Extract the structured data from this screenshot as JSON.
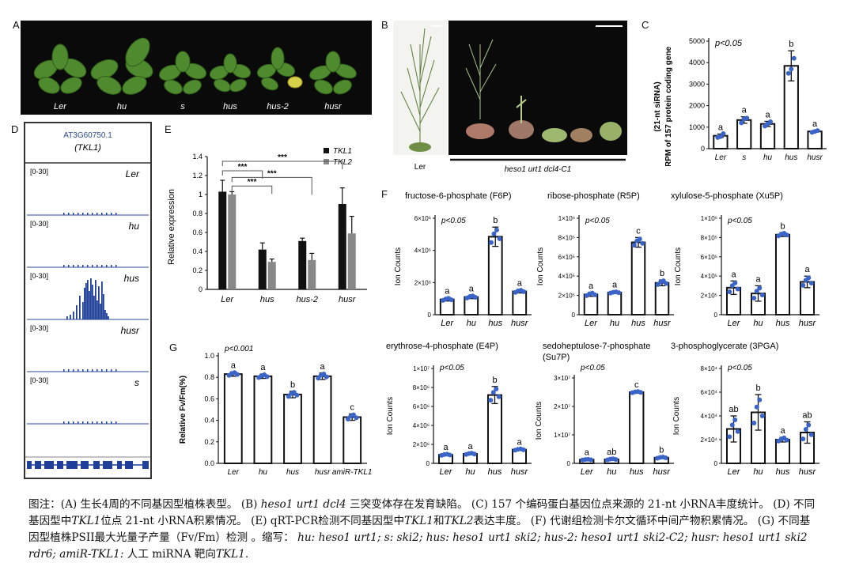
{
  "panels": {
    "A": {
      "letter": "A",
      "genotypes": [
        "Ler",
        "hu",
        "s",
        "hus",
        "hus-2",
        "husr"
      ]
    },
    "B": {
      "letter": "B",
      "left_label": "Ler",
      "right_label": "heso1 urt1 dcl4-C1"
    },
    "C": {
      "letter": "C",
      "pval": "p<0.05",
      "ylabel_line1": "(21-nt siRNA)",
      "ylabel_line2": "RPM of 157 protein coding gene"
    },
    "D": {
      "letter": "D",
      "gene_id": "AT3G60750.1",
      "gene_name": "(TKL1)",
      "tracks": [
        {
          "range": "[0-30]",
          "name": "Ler"
        },
        {
          "range": "[0-30]",
          "name": "hu"
        },
        {
          "range": "[0-30]",
          "name": "hus"
        },
        {
          "range": "[0-30]",
          "name": "husr"
        },
        {
          "range": "[0-30]",
          "name": "s"
        }
      ]
    },
    "E": {
      "letter": "E",
      "ylabel": "Relative expression",
      "sig": "***",
      "legend": [
        "TKL1",
        "TKL2"
      ]
    },
    "F": {
      "letter": "F"
    },
    "G": {
      "letter": "G",
      "pval": "p<0.001",
      "ylabel": "Relative Fv/Fm(%)"
    }
  },
  "chart_data": [
    {
      "id": "C",
      "type": "bar",
      "categories": [
        "Ler",
        "s",
        "hu",
        "hus",
        "husr"
      ],
      "values": [
        600,
        1330,
        1150,
        3850,
        800
      ],
      "points": [
        [
          520,
          560,
          700
        ],
        [
          1200,
          1380,
          1420
        ],
        [
          1050,
          1150,
          1250
        ],
        [
          3500,
          3700,
          4200
        ],
        [
          760,
          800,
          840
        ]
      ],
      "errors": [
        80,
        150,
        120,
        700,
        40
      ],
      "letters": [
        "a",
        "a",
        "a",
        "b",
        "a"
      ],
      "yticks": [
        0,
        1000,
        2000,
        3000,
        4000,
        5000
      ],
      "ylim": [
        0,
        5000
      ],
      "ylabel": "RPM of 157 protein coding gene (21-nt siRNA)"
    },
    {
      "id": "E",
      "type": "bar",
      "categories": [
        "Ler",
        "hus",
        "hus-2",
        "husr"
      ],
      "series": [
        {
          "name": "TKL1",
          "values": [
            1.03,
            0.42,
            0.51,
            0.9
          ],
          "errors": [
            0.12,
            0.07,
            0.03,
            0.17
          ]
        },
        {
          "name": "TKL2",
          "values": [
            1.0,
            0.29,
            0.31,
            0.59
          ],
          "errors": [
            0.03,
            0.03,
            0.07,
            0.18
          ]
        }
      ],
      "yticks": [
        "0",
        "0.2",
        "0.4",
        "0.6",
        "0.8",
        "1",
        "1.2",
        "1.4"
      ],
      "ylim": [
        0,
        1.4
      ],
      "ylabel": "Relative expression"
    },
    {
      "id": "F1",
      "type": "bar",
      "title": "fructose-6-phosphate (F6P)",
      "pval": "p<0.05",
      "ylabel": "Ion Counts",
      "categories": [
        "Ler",
        "hu",
        "hus",
        "husr"
      ],
      "values": [
        950000,
        1100000,
        4850000,
        1450000
      ],
      "errors": [
        100000,
        100000,
        600000,
        100000
      ],
      "letters": [
        "a",
        "a",
        "b",
        "a"
      ],
      "ylim": [
        0,
        6000000
      ],
      "yticks": [
        0,
        2000000,
        4000000,
        6000000
      ],
      "ytick_labels": [
        "0",
        "2×10⁶",
        "4×10⁶",
        "6×10⁶"
      ]
    },
    {
      "id": "F2",
      "type": "bar",
      "title": "ribose-phosphate (R5P)",
      "pval": "p<0.05",
      "ylabel": "Ion Counts",
      "categories": [
        "Ler",
        "hu",
        "hus",
        "husr"
      ],
      "values": [
        210000,
        230000,
        750000,
        330000
      ],
      "errors": [
        20000,
        10000,
        50000,
        30000
      ],
      "letters": [
        "a",
        "a",
        "c",
        "b"
      ],
      "ylim": [
        0,
        1000000
      ],
      "yticks": [
        0,
        200000,
        400000,
        600000,
        800000,
        1000000
      ],
      "ytick_labels": [
        "0",
        "2×10⁵",
        "4×10⁵",
        "6×10⁵",
        "8×10⁵",
        "1×10⁶"
      ]
    },
    {
      "id": "F3",
      "type": "bar",
      "title": "xylulose-5-phosphate (Xu5P)",
      "pval": "p<0.05",
      "ylabel": "Ion Counts",
      "categories": [
        "Ler",
        "hu",
        "hus",
        "husr"
      ],
      "values": [
        280000,
        220000,
        830000,
        340000
      ],
      "errors": [
        70000,
        80000,
        20000,
        60000
      ],
      "letters": [
        "a",
        "a",
        "b",
        "a"
      ],
      "ylim": [
        0,
        1000000
      ],
      "yticks": [
        0,
        200000,
        400000,
        600000,
        800000,
        1000000
      ],
      "ytick_labels": [
        "0",
        "2×10⁵",
        "4×10⁵",
        "6×10⁵",
        "8×10⁵",
        "1×10⁶"
      ]
    },
    {
      "id": "F4",
      "type": "bar",
      "title": "erythrose-4-phosphate (E4P)",
      "pval": "p<0.05",
      "ylabel": "Ion Counts",
      "categories": [
        "Ler",
        "hu",
        "hus",
        "husr"
      ],
      "values": [
        900000,
        1000000,
        7200000,
        1450000
      ],
      "errors": [
        100000,
        100000,
        900000,
        100000
      ],
      "letters": [
        "a",
        "a",
        "b",
        "a"
      ],
      "ylim": [
        0,
        10000000
      ],
      "yticks": [
        0,
        2000000,
        4000000,
        6000000,
        8000000,
        10000000
      ],
      "ytick_labels": [
        "0",
        "2×10⁶",
        "4×10⁶",
        "6×10⁶",
        "8×10⁶",
        "1×10⁷"
      ]
    },
    {
      "id": "F5",
      "type": "bar",
      "title": "sedoheptulose-7-phosphate",
      "title2": "(Su7P)",
      "pval": "p<0.05",
      "ylabel": "Ion Counts",
      "categories": [
        "Ler",
        "hu",
        "hus",
        "husr"
      ],
      "values": [
        1300000,
        1400000,
        25000000,
        2000000
      ],
      "errors": [
        200000,
        300000,
        300000,
        300000
      ],
      "letters": [
        "a",
        "ab",
        "c",
        "b"
      ],
      "ylim": [
        0,
        30000000
      ],
      "yticks": [
        0,
        10000000,
        20000000,
        30000000
      ],
      "ytick_labels": [
        "0",
        "1×10⁷",
        "2×10⁷",
        "3×10⁷"
      ]
    },
    {
      "id": "F6",
      "type": "bar",
      "title": "3-phosphoglycerate (3PGA)",
      "pval": "p<0.05",
      "ylabel": "Ion Counts",
      "categories": [
        "Ler",
        "hu",
        "hus",
        "husr"
      ],
      "values": [
        29000,
        43000,
        20000,
        26000
      ],
      "errors": [
        11000,
        15000,
        2000,
        9000
      ],
      "letters": [
        "ab",
        "b",
        "a",
        "ab"
      ],
      "ylim": [
        0,
        80000
      ],
      "yticks": [
        0,
        20000,
        40000,
        60000,
        80000
      ],
      "ytick_labels": [
        "0",
        "2×10⁴",
        "4×10⁴",
        "6×10⁴",
        "8×10⁴"
      ]
    },
    {
      "id": "G",
      "type": "bar",
      "pval": "p<0.001",
      "ylabel": "Relative Fv/Fm(%)",
      "categories": [
        "Ler",
        "hu",
        "hus",
        "husr",
        "amiR-TKL1"
      ],
      "values": [
        0.83,
        0.81,
        0.64,
        0.81,
        0.43
      ],
      "errors": [
        0.02,
        0.02,
        0.03,
        0.03,
        0.03
      ],
      "letters": [
        "a",
        "a",
        "b",
        "a",
        "c"
      ],
      "ylim": [
        0,
        1.0
      ],
      "yticks": [
        0,
        0.2,
        0.4,
        0.6,
        0.8,
        1.0
      ],
      "ytick_labels": [
        "0.0",
        "0.2",
        "0.4",
        "0.6",
        "0.8",
        "1.0"
      ]
    }
  ],
  "caption": {
    "lbl_note": "图注：",
    "a": "(A) 生长4周的不同基因型植株表型。",
    "b1": "(B)",
    "b_it": "heso1 urt1 dcl4",
    "b2": "三突变体存在发育缺陷。",
    "c": "(C) 157 个编码蛋白基因位点来源的 21-nt 小RNA丰度统计。",
    "d1": "(D) 不同基因型中",
    "d_it": "TKL1",
    "d2": "位点 21-nt 小RNA积累情况。",
    "e1": "(E) qRT-PCR检测不同基因型中",
    "e_it1": "TKL1",
    "e_and": "和",
    "e_it2": "TKL2",
    "e2": "表达丰度。",
    "f": "(F) 代谢组检测卡尔文循环中间产物积累情况。",
    "g": "(G) 不同基因型植株PSII最大光量子产量（Fv/Fm）检测 。缩写：",
    "abbr": "hu: heso1 urt1; s: ski2; hus: heso1 urt1 ski2; hus-2: heso1 urt1 ski2-C2; husr: heso1 urt1 ski2 rdr6; amiR-TKL1:",
    "tail1": "人工 miRNA 靶向",
    "tail_it": "TKL1",
    "tail2": "."
  }
}
